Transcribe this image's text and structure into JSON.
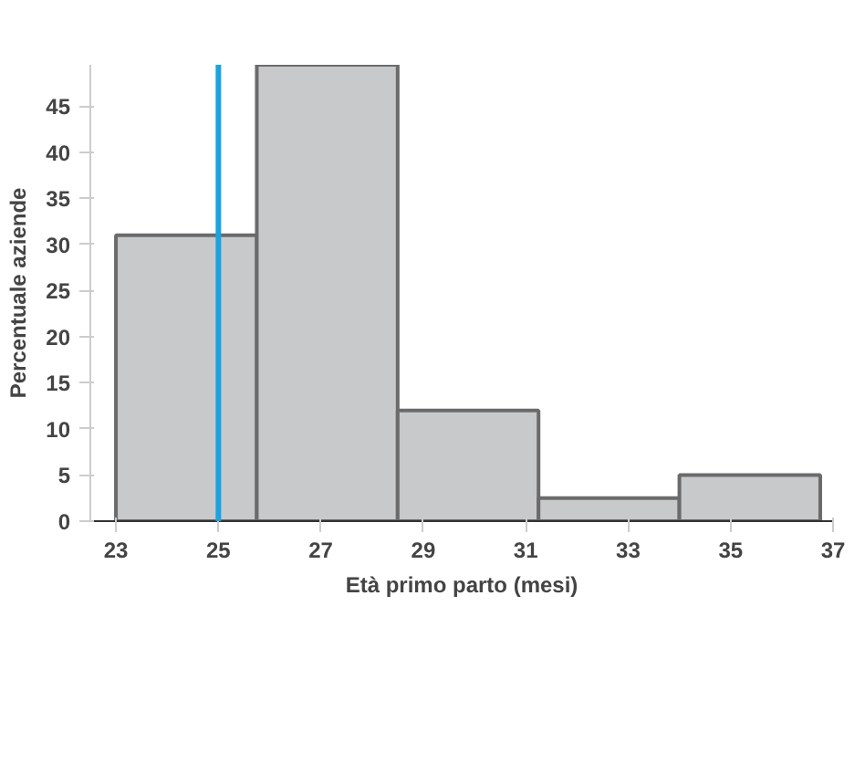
{
  "chart_data": {
    "type": "histogram",
    "xlabel": "Età primo parto (mesi)",
    "ylabel": "Percentuale aziende",
    "bins": [
      23,
      25.75,
      28.5,
      31.25,
      34,
      36.75
    ],
    "values": [
      31,
      49.5,
      12,
      2.5,
      5
    ],
    "color": "#c8c9cb",
    "xlim": [
      22.5,
      37
    ],
    "ylim": [
      0,
      49.5
    ],
    "xticks": [
      23,
      25,
      27,
      29,
      31,
      33,
      35,
      37
    ],
    "yticks": [
      0,
      5,
      10,
      15,
      20,
      25,
      30,
      35,
      40,
      45
    ],
    "ref_lines": [
      {
        "axis": "x",
        "value": 25,
        "color": "#1aa3e0"
      }
    ],
    "grid": false
  }
}
